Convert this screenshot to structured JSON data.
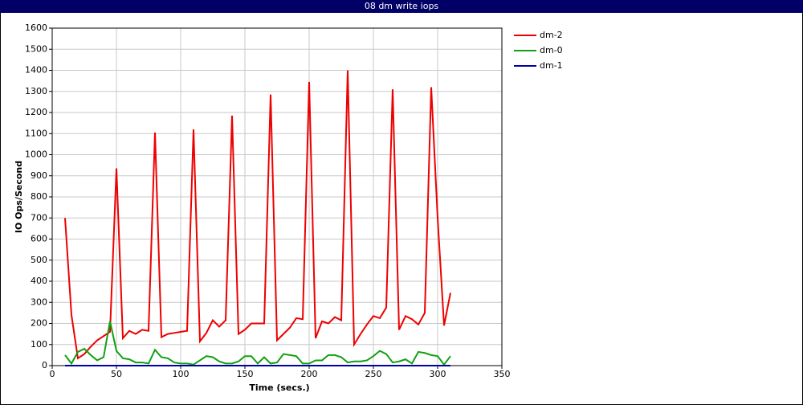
{
  "chart_data": {
    "type": "line",
    "title": "08 dm write iops",
    "x_label": "Time (secs.)",
    "y_label": "IO Ops/Second",
    "x": [
      10,
      15,
      20,
      25,
      30,
      35,
      40,
      45,
      50,
      55,
      60,
      65,
      70,
      75,
      80,
      85,
      90,
      95,
      100,
      105,
      110,
      115,
      120,
      125,
      130,
      135,
      140,
      145,
      150,
      155,
      160,
      165,
      170,
      175,
      180,
      185,
      190,
      195,
      200,
      205,
      210,
      215,
      220,
      225,
      230,
      235,
      240,
      245,
      250,
      255,
      260,
      265,
      270,
      275,
      280,
      285,
      290,
      295,
      300,
      305,
      310
    ],
    "series": [
      {
        "name": "dm-2",
        "color": "#ee0000",
        "values": [
          700,
          240,
          35,
          55,
          90,
          120,
          140,
          160,
          935,
          130,
          165,
          150,
          170,
          165,
          1105,
          135,
          150,
          155,
          160,
          165,
          1120,
          115,
          155,
          215,
          185,
          215,
          1185,
          150,
          170,
          200,
          200,
          200,
          1285,
          120,
          150,
          180,
          225,
          220,
          1345,
          130,
          210,
          200,
          230,
          215,
          1400,
          100,
          150,
          195,
          235,
          225,
          275,
          1310,
          170,
          235,
          220,
          195,
          250,
          1320,
          700,
          190,
          345
        ]
      },
      {
        "name": "dm-0",
        "color": "#11a011",
        "values": [
          50,
          10,
          65,
          80,
          50,
          25,
          40,
          210,
          70,
          35,
          30,
          15,
          15,
          10,
          75,
          40,
          35,
          15,
          10,
          10,
          5,
          25,
          45,
          40,
          20,
          10,
          10,
          20,
          45,
          45,
          10,
          40,
          10,
          15,
          55,
          50,
          45,
          10,
          10,
          25,
          25,
          50,
          50,
          40,
          15,
          20,
          20,
          25,
          45,
          70,
          55,
          15,
          20,
          30,
          10,
          65,
          60,
          50,
          45,
          5,
          45
        ]
      },
      {
        "name": "dm-1",
        "color": "#0000aa",
        "values": [
          0,
          0,
          0,
          0,
          0,
          0,
          0,
          0,
          0,
          0,
          0,
          0,
          0,
          0,
          0,
          0,
          0,
          0,
          0,
          0,
          0,
          0,
          0,
          0,
          0,
          0,
          0,
          0,
          0,
          0,
          0,
          0,
          0,
          0,
          0,
          0,
          0,
          0,
          0,
          0,
          0,
          0,
          0,
          0,
          0,
          0,
          0,
          0,
          0,
          0,
          0,
          0,
          0,
          0,
          0,
          0,
          0,
          0,
          0,
          0,
          0
        ]
      }
    ],
    "xlim": [
      0,
      350
    ],
    "xticks": [
      0,
      50,
      100,
      150,
      200,
      250,
      300,
      350
    ],
    "ylim": [
      0,
      1600
    ],
    "yticks": [
      0,
      100,
      200,
      300,
      400,
      500,
      600,
      700,
      800,
      900,
      1000,
      1100,
      1200,
      1300,
      1400,
      1500,
      1600
    ],
    "grid": true,
    "legend": "right"
  }
}
